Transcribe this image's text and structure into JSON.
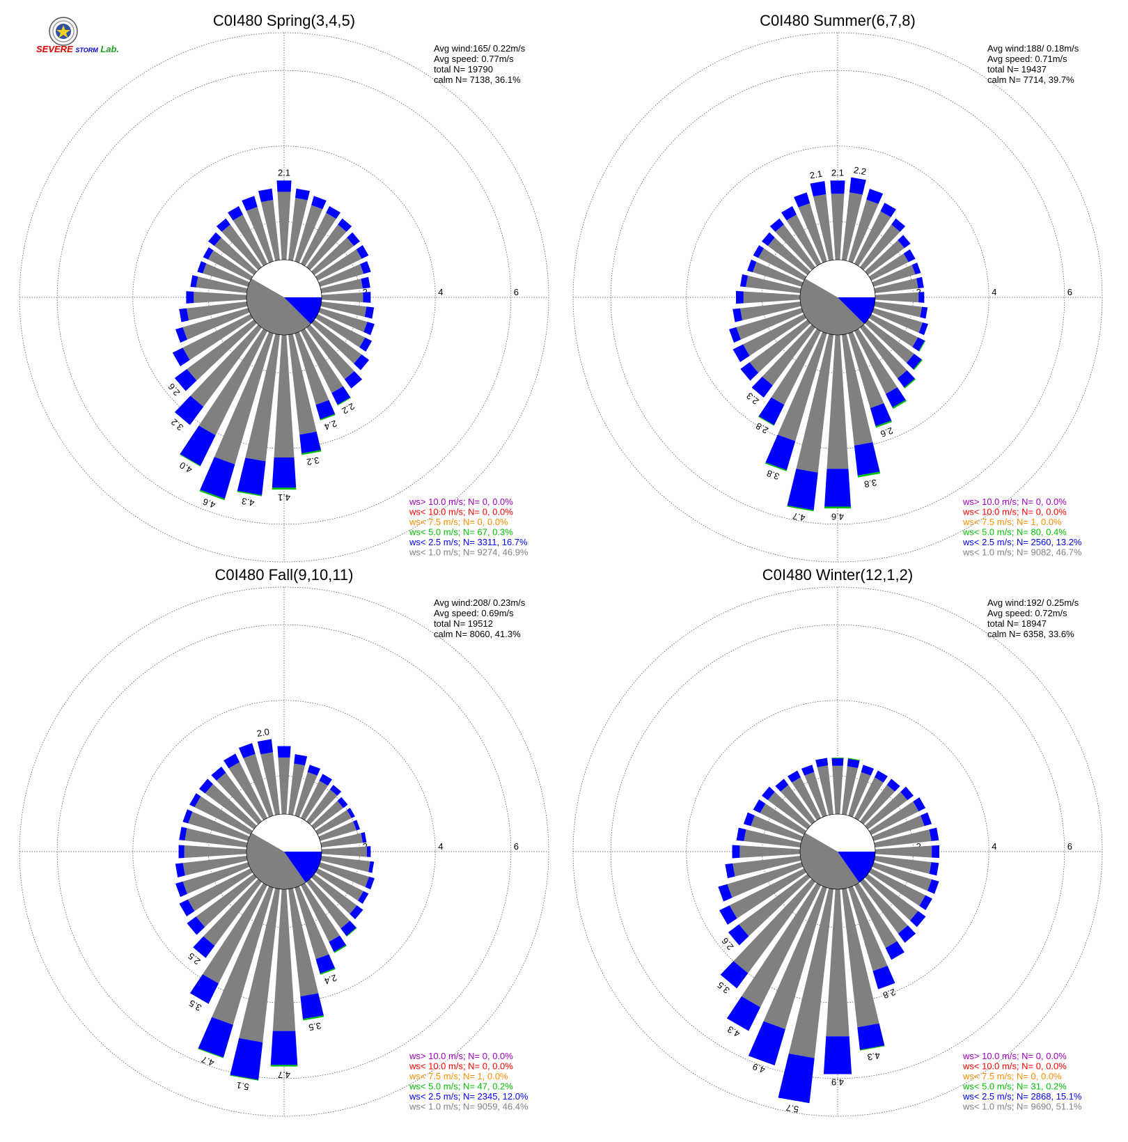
{
  "logo": {
    "text_severe": "SEVERE",
    "text_storm": "STORM",
    "text_lab": "Lab."
  },
  "colors": {
    "calm": "#808080",
    "ws_lt_1": "#808080",
    "ws_lt_2_5": "#0000ff",
    "ws_lt_5": "#00c000",
    "ws_lt_7_5": "#ff8c00",
    "ws_lt_10": "#ff0000",
    "ws_gt_10": "#a000c0",
    "grid": "#444444"
  },
  "chart_data": [
    {
      "type": "wind-rose",
      "title": "C0I480 Spring(3,4,5)",
      "radial_ticks": [
        "2",
        "4",
        "6"
      ],
      "radial_max": 7,
      "stats": [
        "Avg wind:165/ 0.22m/s",
        "Avg speed: 0.77m/s",
        "total N=      19790",
        "calm N=   7138,  36.1%"
      ],
      "calm_fraction": 0.361,
      "calm_split": {
        "gray_from_deg": 135,
        "gray_to_deg": 300,
        "blue_from_deg": 90,
        "blue_to_deg": 135
      },
      "directions_deg": [
        0,
        10,
        20,
        30,
        40,
        50,
        60,
        70,
        80,
        90,
        100,
        110,
        120,
        130,
        140,
        150,
        160,
        170,
        180,
        190,
        200,
        210,
        220,
        230,
        240,
        250,
        260,
        270,
        280,
        290,
        300,
        310,
        320,
        330,
        340,
        350
      ],
      "total": [
        2.1,
        1.9,
        1.8,
        1.7,
        1.6,
        1.5,
        1.5,
        1.4,
        1.3,
        1.3,
        1.4,
        1.5,
        1.6,
        1.8,
        2.0,
        2.2,
        2.4,
        3.2,
        4.1,
        4.3,
        4.6,
        4.0,
        3.2,
        2.6,
        2.3,
        2.0,
        1.8,
        1.6,
        1.5,
        1.4,
        1.4,
        1.5,
        1.6,
        1.7,
        1.8,
        1.9
      ],
      "blue": [
        0.3,
        0.25,
        0.25,
        0.2,
        0.2,
        0.2,
        0.2,
        0.2,
        0.2,
        0.2,
        0.2,
        0.2,
        0.2,
        0.25,
        0.3,
        0.35,
        0.4,
        0.5,
        0.8,
        0.9,
        0.95,
        0.9,
        0.6,
        0.4,
        0.3,
        0.2,
        0.2,
        0.2,
        0.15,
        0.15,
        0.15,
        0.2,
        0.2,
        0.25,
        0.3,
        0.3
      ],
      "green": [
        0,
        0,
        0,
        0,
        0,
        0,
        0,
        0,
        0,
        0,
        0,
        0,
        0,
        0,
        0,
        0.02,
        0.03,
        0.04,
        0.05,
        0.03,
        0.04,
        0.02,
        0,
        0,
        0,
        0,
        0,
        0,
        0,
        0,
        0,
        0,
        0,
        0,
        0,
        0
      ],
      "labels": {
        "0": "2.1",
        "150": "2.2",
        "160": "2.4",
        "170": "3.2",
        "180": "4.1",
        "190": "4.3",
        "200": "4.6",
        "210": "4.0",
        "220": "3.2",
        "230": "2.6"
      },
      "legend": [
        {
          "text": "ws> 10.0 m/s; N=      0,  0.0%",
          "color": "#a000c0"
        },
        {
          "text": "ws< 10.0 m/s; N=      0,  0.0%",
          "color": "#ff0000"
        },
        {
          "text": "ws<  7.5 m/s; N=      0,  0.0%",
          "color": "#ff8c00"
        },
        {
          "text": "ws<  5.0 m/s; N=    67,  0.3%",
          "color": "#00c000"
        },
        {
          "text": "ws<  2.5 m/s; N=  3311, 16.7%",
          "color": "#0000ff"
        },
        {
          "text": "ws<  1.0 m/s; N=  9274, 46.9%",
          "color": "#808080"
        }
      ]
    },
    {
      "type": "wind-rose",
      "title": "C0I480 Summer(6,7,8)",
      "radial_ticks": [
        "2",
        "4",
        "6"
      ],
      "radial_max": 7,
      "stats": [
        "Avg wind:188/ 0.18m/s",
        "Avg speed: 0.71m/s",
        "total N=      19437",
        "calm N=   7714,  39.7%"
      ],
      "calm_fraction": 0.397,
      "calm_split": {
        "gray_from_deg": 135,
        "gray_to_deg": 300,
        "blue_from_deg": 90,
        "blue_to_deg": 135
      },
      "directions_deg": [
        0,
        10,
        20,
        30,
        40,
        50,
        60,
        70,
        80,
        90,
        100,
        110,
        120,
        130,
        140,
        150,
        160,
        170,
        180,
        190,
        200,
        210,
        220,
        230,
        240,
        250,
        260,
        270,
        280,
        290,
        300,
        310,
        320,
        330,
        340,
        350
      ],
      "total": [
        2.1,
        2.2,
        2.0,
        1.8,
        1.6,
        1.4,
        1.3,
        1.3,
        1.3,
        1.3,
        1.4,
        1.5,
        1.6,
        1.8,
        2.0,
        2.3,
        2.6,
        3.8,
        4.6,
        4.7,
        3.8,
        2.8,
        2.3,
        2.2,
        2.1,
        2.0,
        1.8,
        1.7,
        1.6,
        1.5,
        1.5,
        1.5,
        1.6,
        1.7,
        1.9,
        2.1
      ],
      "blue": [
        0.35,
        0.4,
        0.3,
        0.25,
        0.2,
        0.2,
        0.2,
        0.15,
        0.15,
        0.15,
        0.15,
        0.15,
        0.2,
        0.25,
        0.3,
        0.4,
        0.5,
        0.8,
        1.0,
        1.0,
        0.8,
        0.6,
        0.4,
        0.3,
        0.3,
        0.2,
        0.2,
        0.2,
        0.15,
        0.15,
        0.15,
        0.2,
        0.2,
        0.25,
        0.3,
        0.35
      ],
      "green": [
        0,
        0,
        0,
        0,
        0,
        0,
        0,
        0,
        0,
        0,
        0,
        0,
        0.02,
        0.03,
        0.03,
        0.04,
        0.04,
        0.05,
        0.05,
        0.03,
        0.03,
        0.02,
        0,
        0,
        0,
        0,
        0,
        0,
        0,
        0,
        0,
        0,
        0,
        0,
        0,
        0
      ],
      "labels": {
        "350": "2.1",
        "0": "2.1",
        "10": "2.2",
        "160": "2.6",
        "170": "3.8",
        "180": "4.6",
        "190": "4.7",
        "200": "3.8",
        "210": "2.8",
        "220": "2.3"
      },
      "legend": [
        {
          "text": "ws> 10.0 m/s; N=      0,  0.0%",
          "color": "#a000c0"
        },
        {
          "text": "ws< 10.0 m/s; N=      0,  0.0%",
          "color": "#ff0000"
        },
        {
          "text": "ws<  7.5 m/s; N=      1,  0.0%",
          "color": "#ff8c00"
        },
        {
          "text": "ws<  5.0 m/s; N=    80,  0.4%",
          "color": "#00c000"
        },
        {
          "text": "ws<  2.5 m/s; N=  2560, 13.2%",
          "color": "#0000ff"
        },
        {
          "text": "ws<  1.0 m/s; N=  9082, 46.7%",
          "color": "#808080"
        }
      ]
    },
    {
      "type": "wind-rose",
      "title": "C0I480 Fall(9,10,11)",
      "radial_ticks": [
        "2",
        "4",
        "6"
      ],
      "radial_max": 7,
      "stats": [
        "Avg wind:208/ 0.23m/s",
        "Avg speed: 0.69m/s",
        "total N=      19512",
        "calm N=   8060,  41.3%"
      ],
      "calm_fraction": 0.413,
      "calm_split": {
        "gray_from_deg": 145,
        "gray_to_deg": 300,
        "blue_from_deg": 90,
        "blue_to_deg": 145
      },
      "directions_deg": [
        0,
        10,
        20,
        30,
        40,
        50,
        60,
        70,
        80,
        90,
        100,
        110,
        120,
        130,
        140,
        150,
        160,
        170,
        180,
        190,
        200,
        210,
        220,
        230,
        240,
        250,
        260,
        270,
        280,
        290,
        300,
        310,
        320,
        330,
        340,
        350
      ],
      "total": [
        1.8,
        1.6,
        1.4,
        1.3,
        1.2,
        1.1,
        1.1,
        1.1,
        1.2,
        1.3,
        1.4,
        1.5,
        1.5,
        1.6,
        1.8,
        2.0,
        2.4,
        3.5,
        4.7,
        5.1,
        4.7,
        3.5,
        2.5,
        2.2,
        2.1,
        2.0,
        1.9,
        1.8,
        1.8,
        1.8,
        1.8,
        1.8,
        1.8,
        1.9,
        2.0,
        2.0
      ],
      "blue": [
        0.3,
        0.25,
        0.2,
        0.2,
        0.15,
        0.15,
        0.1,
        0.1,
        0.1,
        0.1,
        0.1,
        0.15,
        0.15,
        0.2,
        0.25,
        0.3,
        0.4,
        0.6,
        0.9,
        1.0,
        0.9,
        0.6,
        0.4,
        0.3,
        0.25,
        0.2,
        0.2,
        0.15,
        0.15,
        0.15,
        0.15,
        0.2,
        0.2,
        0.25,
        0.3,
        0.35
      ],
      "green": [
        0,
        0,
        0,
        0,
        0,
        0,
        0,
        0,
        0,
        0,
        0,
        0,
        0,
        0,
        0.02,
        0.03,
        0.03,
        0.04,
        0.04,
        0.02,
        0.02,
        0,
        0,
        0,
        0,
        0,
        0,
        0,
        0,
        0,
        0,
        0,
        0,
        0,
        0,
        0
      ],
      "labels": {
        "350": "2.0",
        "160": "2.4",
        "170": "3.5",
        "180": "4.7",
        "190": "5.1",
        "200": "4.7",
        "210": "3.5",
        "220": "2.5"
      },
      "legend": [
        {
          "text": "ws> 10.0 m/s; N=      0,  0.0%",
          "color": "#a000c0"
        },
        {
          "text": "ws< 10.0 m/s; N=      0,  0.0%",
          "color": "#ff0000"
        },
        {
          "text": "ws<  7.5 m/s; N=      1,  0.0%",
          "color": "#ff8c00"
        },
        {
          "text": "ws<  5.0 m/s; N=    47,  0.2%",
          "color": "#00c000"
        },
        {
          "text": "ws<  2.5 m/s; N=  2345, 12.0%",
          "color": "#0000ff"
        },
        {
          "text": "ws<  1.0 m/s; N=  9059, 46.4%",
          "color": "#808080"
        }
      ]
    },
    {
      "type": "wind-rose",
      "title": "C0I480 Winter(12,1,2)",
      "radial_ticks": [
        "2",
        "4",
        "6"
      ],
      "radial_max": 7,
      "stats": [
        "Avg wind:192/ 0.25m/s",
        "Avg speed: 0.72m/s",
        "total N=      18947",
        "calm N=   6358,  33.6%"
      ],
      "calm_fraction": 0.336,
      "calm_split": {
        "gray_from_deg": 145,
        "gray_to_deg": 300,
        "blue_from_deg": 90,
        "blue_to_deg": 145
      },
      "directions_deg": [
        0,
        10,
        20,
        30,
        40,
        50,
        60,
        70,
        80,
        90,
        100,
        110,
        120,
        130,
        140,
        150,
        160,
        170,
        180,
        190,
        200,
        210,
        220,
        230,
        240,
        250,
        260,
        270,
        280,
        290,
        300,
        310,
        320,
        330,
        340,
        350
      ],
      "total": [
        1.5,
        1.5,
        1.4,
        1.4,
        1.4,
        1.5,
        1.6,
        1.6,
        1.7,
        1.7,
        1.7,
        1.8,
        1.8,
        1.9,
        2.0,
        2.2,
        2.8,
        4.3,
        4.9,
        5.7,
        4.9,
        4.3,
        3.5,
        2.6,
        2.5,
        2.3,
        2.0,
        1.8,
        1.7,
        1.6,
        1.5,
        1.5,
        1.4,
        1.4,
        1.4,
        1.5
      ],
      "blue": [
        0.2,
        0.2,
        0.2,
        0.2,
        0.2,
        0.2,
        0.2,
        0.2,
        0.2,
        0.2,
        0.2,
        0.2,
        0.2,
        0.25,
        0.3,
        0.35,
        0.5,
        0.6,
        1.0,
        1.2,
        1.0,
        0.7,
        0.5,
        0.35,
        0.3,
        0.25,
        0.2,
        0.2,
        0.2,
        0.2,
        0.2,
        0.2,
        0.2,
        0.2,
        0.2,
        0.2
      ],
      "green": [
        0.02,
        0.02,
        0,
        0,
        0,
        0,
        0,
        0,
        0,
        0,
        0,
        0,
        0,
        0,
        0,
        0,
        0,
        0.02,
        0,
        0,
        0,
        0,
        0,
        0,
        0,
        0,
        0,
        0,
        0,
        0,
        0,
        0,
        0,
        0,
        0,
        0
      ],
      "labels": {
        "160": "2.8",
        "170": "4.3",
        "180": "4.9",
        "190": "5.7",
        "200": "4.9",
        "210": "4.3",
        "220": "3.5",
        "230": "2.6"
      },
      "legend": [
        {
          "text": "ws> 10.0 m/s; N=      0,  0.0%",
          "color": "#a000c0"
        },
        {
          "text": "ws< 10.0 m/s; N=      0,  0.0%",
          "color": "#ff0000"
        },
        {
          "text": "ws<  7.5 m/s; N=      0,  0.0%",
          "color": "#ff8c00"
        },
        {
          "text": "ws<  5.0 m/s; N=    31,  0.2%",
          "color": "#00c000"
        },
        {
          "text": "ws<  2.5 m/s; N=  2868, 15.1%",
          "color": "#0000ff"
        },
        {
          "text": "ws<  1.0 m/s; N=  9690, 51.1%",
          "color": "#808080"
        }
      ]
    }
  ]
}
